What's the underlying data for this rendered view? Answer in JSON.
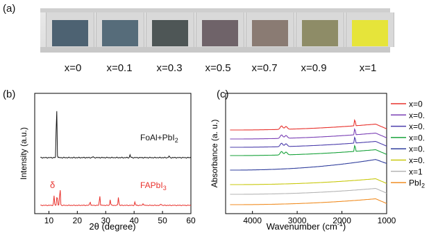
{
  "panel_labels": {
    "a": "(a)",
    "b": "(b)",
    "c": "(c)"
  },
  "photo": {
    "samples": [
      {
        "label": "x=0",
        "film_color": "#4d6272"
      },
      {
        "label": "x=0.1",
        "film_color": "#566c7a"
      },
      {
        "label": "x=0.3",
        "film_color": "#4e5656"
      },
      {
        "label": "x=0.5",
        "film_color": "#6f6369"
      },
      {
        "label": "x=0.7",
        "film_color": "#8a7b73"
      },
      {
        "label": "x=0.9",
        "film_color": "#8e8c67"
      },
      {
        "label": "x=1",
        "film_color": "#e6e43a"
      }
    ]
  },
  "chart_data": [
    {
      "type": "line",
      "panel": "b",
      "xlabel": "2θ (degree)",
      "ylabel": "Intensity (a.u.)",
      "xlim": [
        5,
        60
      ],
      "xticks": [
        10,
        20,
        30,
        40,
        50,
        60
      ],
      "series": [
        {
          "name": "FoAl+PbI2",
          "color": "#111111",
          "peaks": [
            [
              12.7,
              100
            ],
            [
              25.5,
              2
            ],
            [
              38.6,
              5
            ],
            [
              52.3,
              3
            ]
          ]
        },
        {
          "name": "FAPbI3",
          "color": "#e8302b",
          "peaks": [
            [
              11.8,
              22
            ],
            [
              12.9,
              28
            ],
            [
              13.9,
              45
            ],
            [
              24.5,
              10
            ],
            [
              27.9,
              24
            ],
            [
              31.6,
              14
            ],
            [
              34.5,
              20
            ],
            [
              40.3,
              8
            ],
            [
              43.2,
              5
            ],
            [
              49.5,
              4
            ]
          ]
        }
      ],
      "annotations": [
        "δ"
      ],
      "label_texts": {
        "foal": "FoAl+PbI",
        "foal_sub": "2",
        "fapbi": "FAPbI",
        "fapbi_sub": "3"
      }
    },
    {
      "type": "line",
      "panel": "c",
      "xlabel": "Wavenumber (cm",
      "xlabel_sup": "-1",
      "xlabel_end": ")",
      "ylabel": "Absorbance (a. u.)",
      "xlim": [
        4600,
        1000
      ],
      "xticks": [
        4000,
        3000,
        2000,
        1000
      ],
      "legend_position": "right",
      "series": [
        {
          "name": "x=0",
          "color": "#e8302b"
        },
        {
          "name": "x=0.",
          "color": "#7a3fb5"
        },
        {
          "name": "x=0.",
          "color": "#4a3cab"
        },
        {
          "name": "x=0.",
          "color": "#17a23a"
        },
        {
          "name": "x=0.",
          "color": "#2f3d9c"
        },
        {
          "name": "x=0.",
          "color": "#c8c80c"
        },
        {
          "name": "x=1",
          "color": "#b5b5b5"
        },
        {
          "name": "PbI2",
          "color": "#f08d23",
          "display": "PbI",
          "sub": "2"
        }
      ]
    }
  ]
}
